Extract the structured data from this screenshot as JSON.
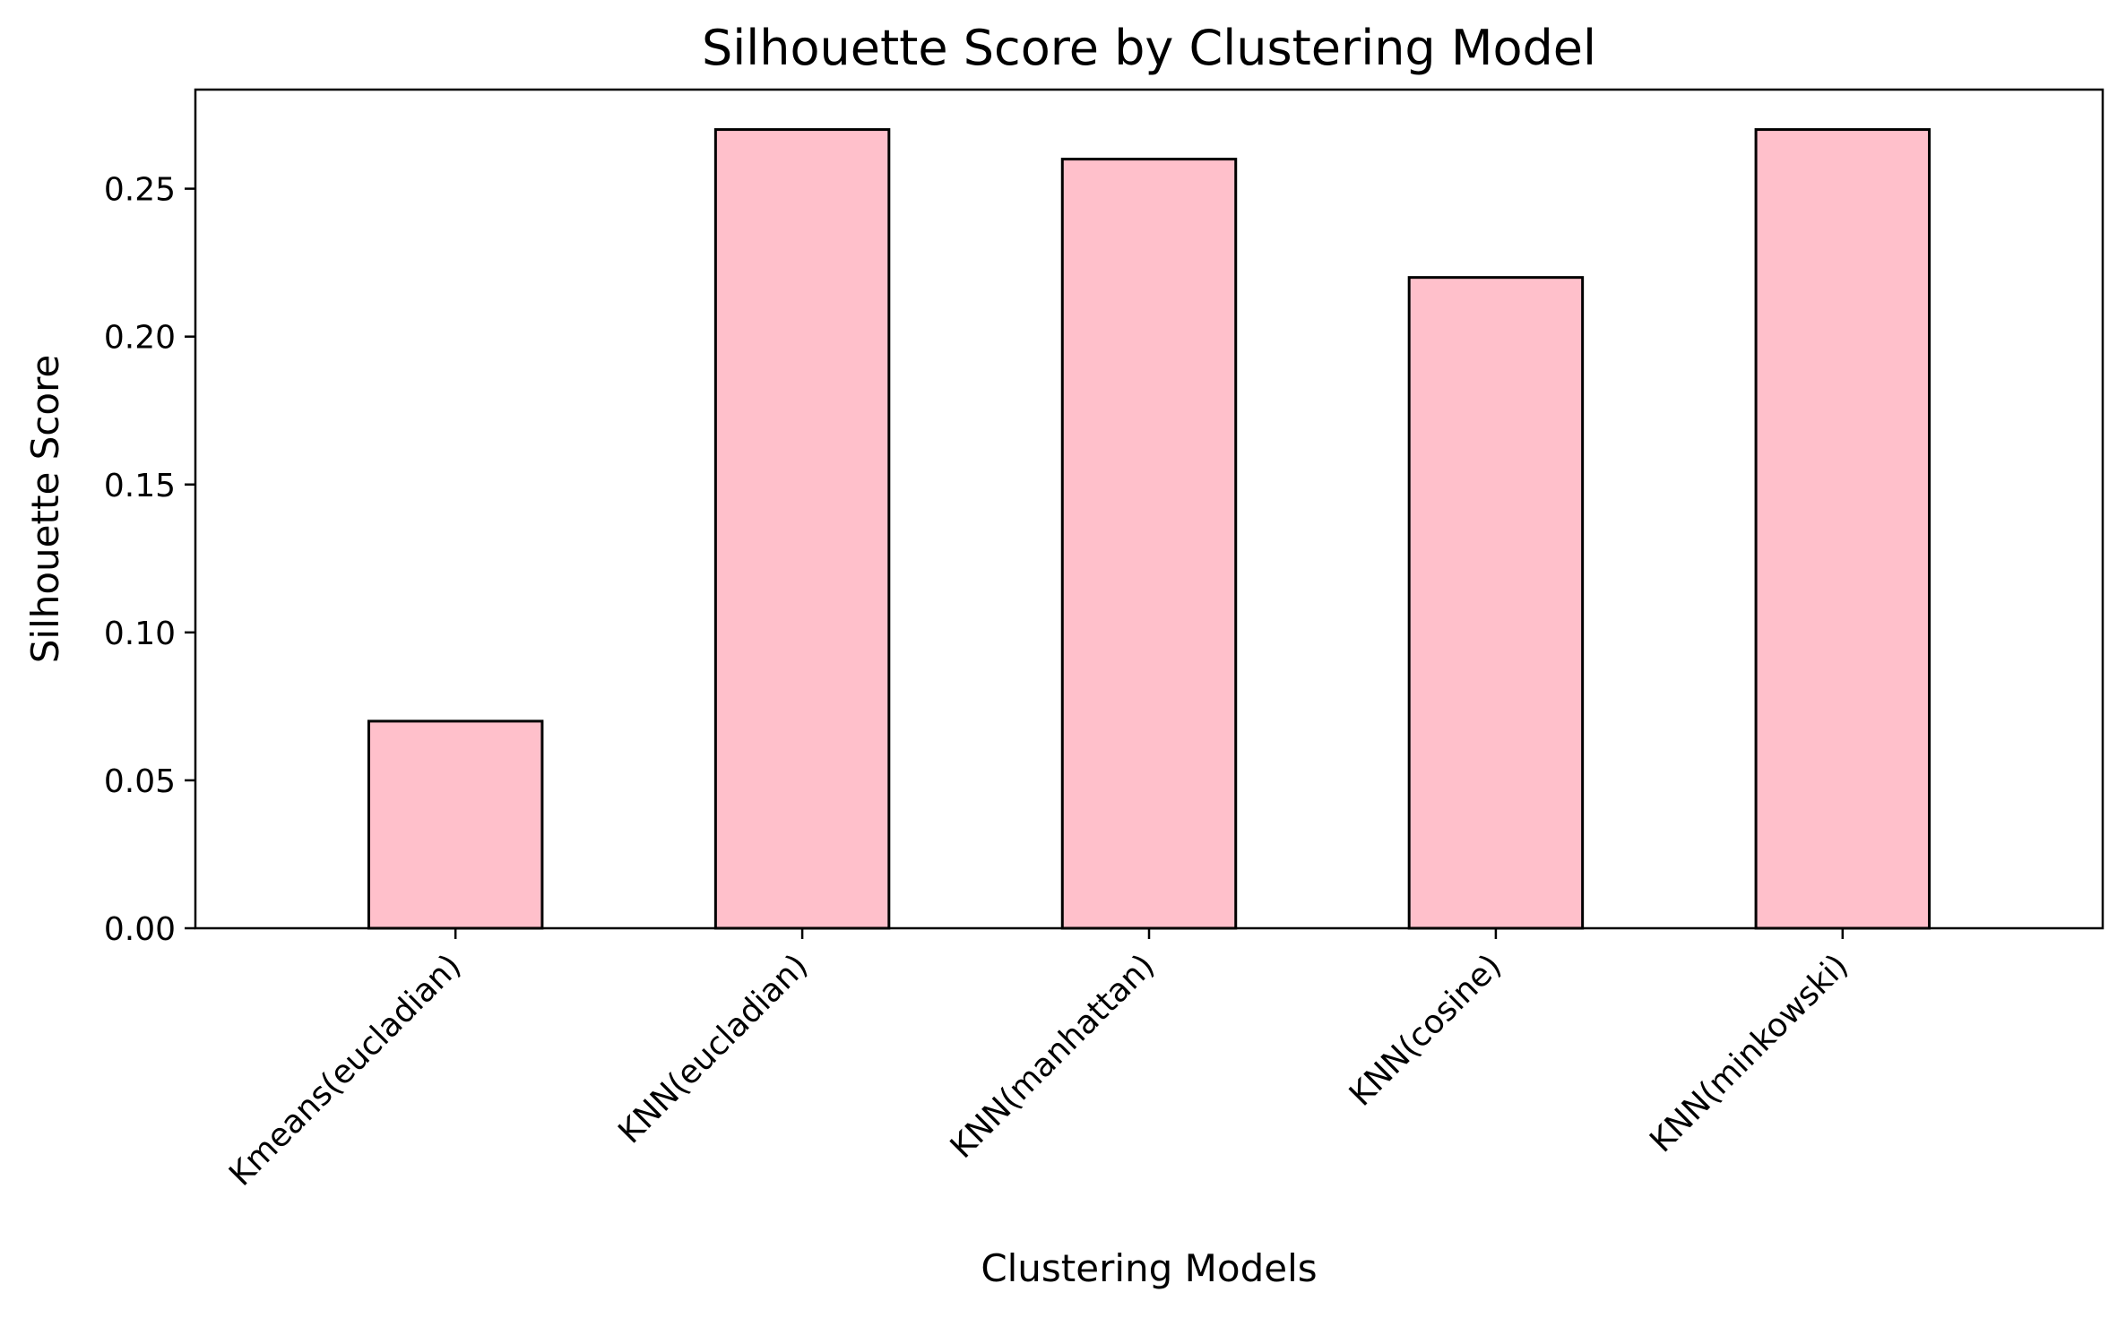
{
  "chart_data": {
    "type": "bar",
    "title": "Silhouette Score by Clustering Model",
    "xlabel": "Clustering Models",
    "ylabel": "Silhouette Score",
    "categories": [
      "Kmeans(eucladian)",
      "KNN(eucladian)",
      "KNN(manhattan)",
      "KNN(cosine)",
      "KNN(minkowski)"
    ],
    "values": [
      0.07,
      0.27,
      0.26,
      0.22,
      0.27
    ],
    "ylim": [
      0,
      0.2835
    ],
    "yticks": [
      "0.00",
      "0.05",
      "0.10",
      "0.15",
      "0.20",
      "0.25"
    ],
    "grid": false,
    "colors": {
      "bar_fill": "#ffc0cb",
      "bar_edge": "#000000"
    }
  }
}
